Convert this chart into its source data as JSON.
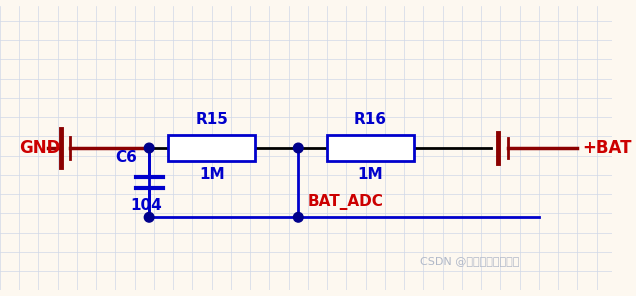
{
  "bg_color": "#fdf8f0",
  "grid_color": "#d0d8e8",
  "wire_color": "#000000",
  "blue_color": "#0000cc",
  "dark_red_color": "#8b0000",
  "red_label_color": "#cc0000",
  "junction_color": "#00008b",
  "watermark_color": "#b0b8c8",
  "watermark_text": "CSDN @爱学习的王大胖子",
  "label_GND": "GND",
  "label_BAT": "+BAT",
  "label_R15": "R15",
  "label_R16": "R16",
  "label_1M_left": "1M",
  "label_1M_right": "1M",
  "label_C6": "C6",
  "label_104": "104",
  "label_BAT_ADC": "BAT_ADC"
}
